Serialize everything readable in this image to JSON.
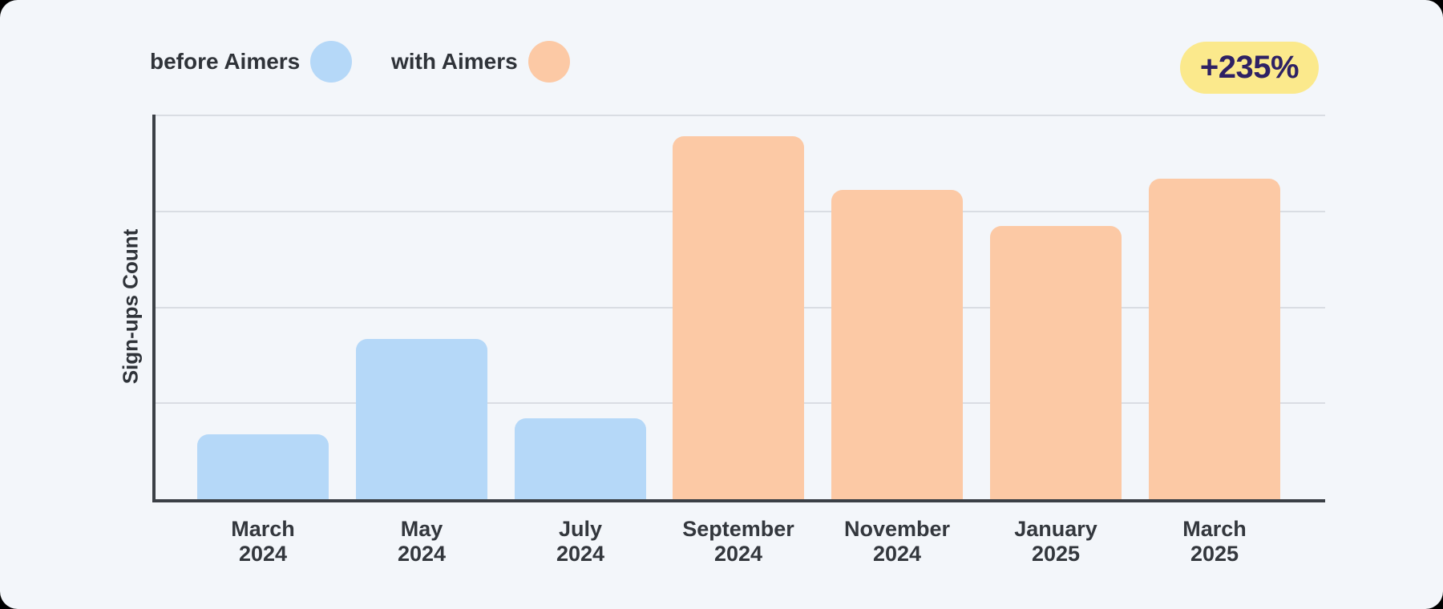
{
  "page": {
    "outer_background": "#000000",
    "panel_background": "#f3f6fa"
  },
  "legend": {
    "items": [
      {
        "label": "before Aimers",
        "color": "#b5d8f8"
      },
      {
        "label": "with Aimers",
        "color": "#fcc9a5"
      }
    ]
  },
  "badge": {
    "label": "+235%",
    "background": "#fbe98c",
    "text_color": "#2e2164"
  },
  "chart_data": {
    "type": "bar",
    "title": "",
    "xlabel": "",
    "ylabel": "Sign-ups Count",
    "categories": [
      "March 2024",
      "May 2024",
      "July 2024",
      "September 2024",
      "November 2024",
      "January 2025",
      "March 2025"
    ],
    "values": [
      68,
      167,
      84,
      378,
      322,
      285,
      334
    ],
    "bar_groups": [
      "before Aimers",
      "before Aimers",
      "before Aimers",
      "with Aimers",
      "with Aimers",
      "with Aimers",
      "with Aimers"
    ],
    "series_colors": {
      "before Aimers": "#b5d8f8",
      "with Aimers": "#fcc9a5"
    },
    "legend_entries": [
      "before Aimers",
      "with Aimers"
    ],
    "legend_position": "top-left",
    "annotation_badge": "+235%",
    "ylim": [
      0,
      400
    ],
    "gridline_values": [
      100,
      200,
      300,
      400
    ],
    "grid": true,
    "y_ticks_labeled": false,
    "units_note": "y-axis has no numeric labels; values are relative units where one gridline interval = 100",
    "colors": {
      "gridline": "#d9dde3",
      "axis": "#3b4046",
      "label_text": "#33373d"
    }
  }
}
